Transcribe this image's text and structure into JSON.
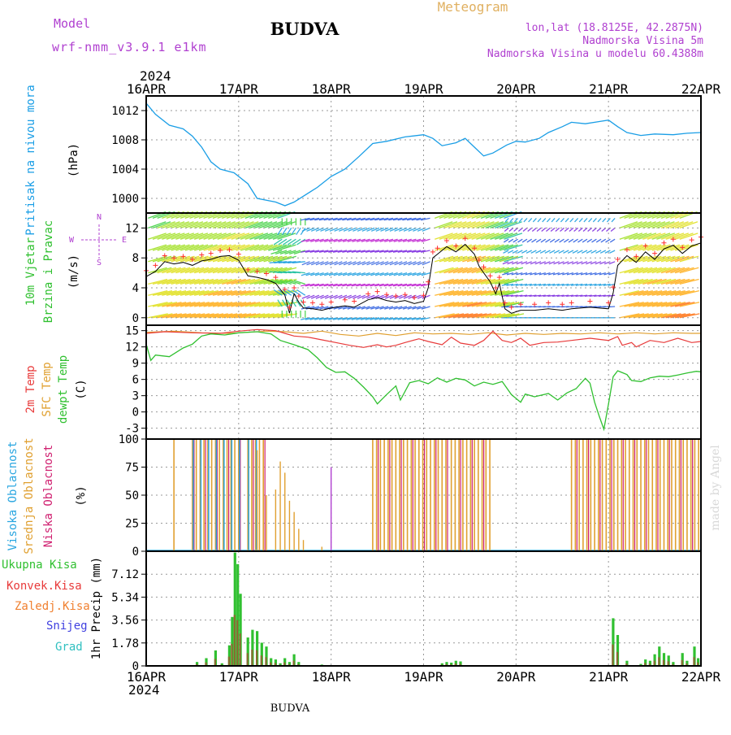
{
  "header": {
    "model_label": "Model",
    "model_name": "wrf-nmm_v3.9.1 e1km",
    "station": "BUDVA",
    "product": "Meteogram",
    "lonlat": "lon,lat (18.8125E, 42.2875N)",
    "elevation": "Nadmorska Visina 5m",
    "model_elevation": "Nadmorska Visina u modelu 60.4388m",
    "footer_station": "BUDVA",
    "credit": "made by Angel"
  },
  "time_axis": {
    "year": "2024",
    "ticks": [
      "16APR",
      "17APR",
      "18APR",
      "19APR",
      "20APR",
      "21APR",
      "22APR"
    ]
  },
  "colors": {
    "pressure": "#1a9ee6",
    "wind_line": "#000000",
    "gust": "#ff3030",
    "temp2m": "#e83a3a",
    "sfc": "#e0a030",
    "dewpt": "#30c030",
    "high_cloud": "#2aa6e0",
    "mid_cloud": "#e0a030",
    "low_cloud": "#d02070",
    "total_precip": "#30c030",
    "conv_precip": "#e83a3a",
    "frz_precip": "#f08030",
    "snow": "#4040e0",
    "hail": "#30c0c0",
    "purple_text": "#b040d0",
    "orange_text": "#e0b060"
  },
  "panels": {
    "pressure": {
      "label": "Pritisak na nivou mora",
      "unit": "(hPa)",
      "ticks": [
        "1012",
        "1008",
        "1004",
        "1000"
      ],
      "tick_values": [
        1012,
        1008,
        1004,
        1000
      ],
      "ylim": [
        998,
        1014
      ]
    },
    "wind": {
      "label1": "10m Vjetar",
      "label2": "Brzina i Pravac",
      "unit": "(m/s)",
      "ticks": [
        "12",
        "8",
        "4",
        "0"
      ],
      "tick_values": [
        12,
        8,
        4,
        0
      ],
      "ylim": [
        -1,
        14
      ],
      "compass": [
        "N",
        "W",
        "E",
        "S"
      ]
    },
    "temperature": {
      "label1": "2m Temp",
      "label2": "SFC Temp",
      "label3": "dewpt Temp",
      "unit": "(C)",
      "ticks": [
        "15",
        "12",
        "9",
        "6",
        "3",
        "0",
        "-3"
      ],
      "tick_values": [
        15,
        12,
        9,
        6,
        3,
        0,
        -3
      ],
      "ylim": [
        -5,
        16
      ]
    },
    "cloud": {
      "label1": "Visoka Oblacnost",
      "label2": "Srednja Oblacnost",
      "label3": "Niska Oblacnost",
      "unit": "(%)",
      "ticks": [
        "100",
        "75",
        "50",
        "25",
        "0"
      ],
      "tick_values": [
        100,
        75,
        50,
        25,
        0
      ],
      "ylim": [
        0,
        100
      ]
    },
    "precip": {
      "legend": [
        "Ukupna Kisa",
        "Konvek.Kisa",
        "Zaledj.Kisa",
        "Snijeg",
        "Grad"
      ],
      "unit": "1hr Precip (mm)",
      "ticks": [
        "7.12",
        "5.34",
        "3.56",
        "1.78",
        "0"
      ],
      "tick_values": [
        7.12,
        5.34,
        3.56,
        1.78,
        0
      ],
      "ylim": [
        0,
        8.9
      ]
    }
  },
  "chart_data": {
    "type": "line",
    "x_unit": "days from 16APR 00 UTC",
    "pressure_hpa": [
      [
        0,
        1013
      ],
      [
        0.1,
        1011.5
      ],
      [
        0.25,
        1010
      ],
      [
        0.4,
        1009.5
      ],
      [
        0.5,
        1008.5
      ],
      [
        0.6,
        1007
      ],
      [
        0.7,
        1005
      ],
      [
        0.8,
        1004
      ],
      [
        0.95,
        1003.5
      ],
      [
        1.1,
        1002
      ],
      [
        1.2,
        1000
      ],
      [
        1.4,
        999.5
      ],
      [
        1.5,
        999
      ],
      [
        1.6,
        999.5
      ],
      [
        1.7,
        1000.3
      ],
      [
        1.85,
        1001.5
      ],
      [
        2.0,
        1003
      ],
      [
        2.15,
        1004
      ],
      [
        2.3,
        1005.7
      ],
      [
        2.45,
        1007.5
      ],
      [
        2.6,
        1007.8
      ],
      [
        2.8,
        1008.4
      ],
      [
        3.0,
        1008.7
      ],
      [
        3.1,
        1008.2
      ],
      [
        3.2,
        1007.2
      ],
      [
        3.35,
        1007.6
      ],
      [
        3.45,
        1008.2
      ],
      [
        3.55,
        1007
      ],
      [
        3.65,
        1005.8
      ],
      [
        3.75,
        1006.2
      ],
      [
        3.9,
        1007.3
      ],
      [
        4.0,
        1007.8
      ],
      [
        4.1,
        1007.7
      ],
      [
        4.25,
        1008.2
      ],
      [
        4.35,
        1009
      ],
      [
        4.5,
        1009.8
      ],
      [
        4.6,
        1010.4
      ],
      [
        4.75,
        1010.2
      ],
      [
        4.9,
        1010.5
      ],
      [
        5.0,
        1010.7
      ],
      [
        5.1,
        1009.8
      ],
      [
        5.2,
        1009
      ],
      [
        5.35,
        1008.6
      ],
      [
        5.5,
        1008.8
      ],
      [
        5.7,
        1008.7
      ],
      [
        5.85,
        1008.9
      ],
      [
        6.0,
        1009
      ]
    ],
    "wind_speed_ms": [
      [
        0,
        5.5
      ],
      [
        0.1,
        6.2
      ],
      [
        0.2,
        7.5
      ],
      [
        0.3,
        7.2
      ],
      [
        0.4,
        7.4
      ],
      [
        0.5,
        7.0
      ],
      [
        0.6,
        7.6
      ],
      [
        0.7,
        7.8
      ],
      [
        0.8,
        8.2
      ],
      [
        0.9,
        8.3
      ],
      [
        1.0,
        7.7
      ],
      [
        1.1,
        5.6
      ],
      [
        1.2,
        5.4
      ],
      [
        1.3,
        5.1
      ],
      [
        1.4,
        4.6
      ],
      [
        1.5,
        3.0
      ],
      [
        1.55,
        0.6
      ],
      [
        1.6,
        3.2
      ],
      [
        1.65,
        2.1
      ],
      [
        1.7,
        1.3
      ],
      [
        1.8,
        1.2
      ],
      [
        1.9,
        1.0
      ],
      [
        2.0,
        1.3
      ],
      [
        2.15,
        1.6
      ],
      [
        2.25,
        1.4
      ],
      [
        2.4,
        2.4
      ],
      [
        2.5,
        2.7
      ],
      [
        2.6,
        2.3
      ],
      [
        2.7,
        2.1
      ],
      [
        2.8,
        2.3
      ],
      [
        2.9,
        1.9
      ],
      [
        3.0,
        2.2
      ],
      [
        3.05,
        4.0
      ],
      [
        3.1,
        8.0
      ],
      [
        3.15,
        8.5
      ],
      [
        3.25,
        9.5
      ],
      [
        3.35,
        8.8
      ],
      [
        3.45,
        9.8
      ],
      [
        3.55,
        8.5
      ],
      [
        3.6,
        6.9
      ],
      [
        3.65,
        6.0
      ],
      [
        3.72,
        4.8
      ],
      [
        3.78,
        3.2
      ],
      [
        3.82,
        4.6
      ],
      [
        3.88,
        1.2
      ],
      [
        3.95,
        0.6
      ],
      [
        4.05,
        1.0
      ],
      [
        4.2,
        1.0
      ],
      [
        4.35,
        1.2
      ],
      [
        4.5,
        1.0
      ],
      [
        4.6,
        1.2
      ],
      [
        4.8,
        1.4
      ],
      [
        5.0,
        1.2
      ],
      [
        5.05,
        3.3
      ],
      [
        5.1,
        7.0
      ],
      [
        5.2,
        8.3
      ],
      [
        5.3,
        7.4
      ],
      [
        5.4,
        8.8
      ],
      [
        5.5,
        7.8
      ],
      [
        5.6,
        9.2
      ],
      [
        5.7,
        9.7
      ],
      [
        5.8,
        8.6
      ],
      [
        5.9,
        9.6
      ],
      [
        6.0,
        10.0
      ]
    ],
    "temp_2m_c": [
      [
        0,
        14.5
      ],
      [
        0.2,
        14.8
      ],
      [
        0.5,
        14.6
      ],
      [
        0.8,
        14.5
      ],
      [
        1.0,
        14.9
      ],
      [
        1.2,
        15.2
      ],
      [
        1.4,
        15.0
      ],
      [
        1.5,
        14.5
      ],
      [
        1.6,
        14.0
      ],
      [
        1.75,
        13.8
      ],
      [
        1.9,
        13.3
      ],
      [
        2.05,
        12.8
      ],
      [
        2.2,
        12.3
      ],
      [
        2.35,
        11.9
      ],
      [
        2.5,
        12.4
      ],
      [
        2.6,
        12.0
      ],
      [
        2.7,
        12.3
      ],
      [
        2.8,
        12.8
      ],
      [
        2.95,
        13.5
      ],
      [
        3.05,
        13.0
      ],
      [
        3.2,
        12.4
      ],
      [
        3.3,
        13.8
      ],
      [
        3.4,
        12.7
      ],
      [
        3.55,
        12.3
      ],
      [
        3.65,
        13.2
      ],
      [
        3.75,
        14.9
      ],
      [
        3.85,
        13.2
      ],
      [
        3.95,
        12.8
      ],
      [
        4.05,
        13.6
      ],
      [
        4.15,
        12.3
      ],
      [
        4.3,
        12.8
      ],
      [
        4.45,
        12.9
      ],
      [
        4.6,
        13.2
      ],
      [
        4.8,
        13.6
      ],
      [
        5.0,
        13.2
      ],
      [
        5.1,
        13.9
      ],
      [
        5.15,
        12.3
      ],
      [
        5.25,
        12.8
      ],
      [
        5.3,
        12.0
      ],
      [
        5.45,
        13.2
      ],
      [
        5.6,
        12.8
      ],
      [
        5.75,
        13.6
      ],
      [
        5.9,
        12.8
      ],
      [
        6.0,
        13.0
      ]
    ],
    "temp_sfc_c": [
      [
        0,
        14.7
      ],
      [
        0.3,
        14.9
      ],
      [
        0.6,
        14.6
      ],
      [
        0.9,
        14.5
      ],
      [
        1.1,
        14.7
      ],
      [
        1.3,
        14.9
      ],
      [
        1.5,
        14.8
      ],
      [
        1.7,
        14.5
      ],
      [
        1.9,
        14.9
      ],
      [
        2.1,
        14.3
      ],
      [
        2.3,
        14.0
      ],
      [
        2.5,
        14.5
      ],
      [
        2.7,
        14.1
      ],
      [
        2.9,
        14.6
      ],
      [
        3.1,
        14.4
      ],
      [
        3.3,
        14.5
      ],
      [
        3.5,
        14.3
      ],
      [
        3.7,
        14.6
      ],
      [
        3.9,
        14.2
      ],
      [
        4.1,
        14.5
      ],
      [
        4.3,
        14.3
      ],
      [
        4.5,
        14.5
      ],
      [
        4.7,
        14.4
      ],
      [
        4.9,
        14.6
      ],
      [
        5.1,
        14.4
      ],
      [
        5.3,
        14.6
      ],
      [
        5.5,
        14.4
      ],
      [
        5.7,
        14.6
      ],
      [
        5.9,
        14.5
      ],
      [
        6.0,
        14.5
      ]
    ],
    "dewpt_c": [
      [
        0,
        12.5
      ],
      [
        0.05,
        9.5
      ],
      [
        0.1,
        10.5
      ],
      [
        0.25,
        10.2
      ],
      [
        0.4,
        11.8
      ],
      [
        0.5,
        12.5
      ],
      [
        0.6,
        14.0
      ],
      [
        0.7,
        14.4
      ],
      [
        0.85,
        14.2
      ],
      [
        1.0,
        14.6
      ],
      [
        1.2,
        14.8
      ],
      [
        1.35,
        14.4
      ],
      [
        1.45,
        13.2
      ],
      [
        1.6,
        12.4
      ],
      [
        1.75,
        11.5
      ],
      [
        1.85,
        10.0
      ],
      [
        1.95,
        8.2
      ],
      [
        2.05,
        7.3
      ],
      [
        2.15,
        7.4
      ],
      [
        2.25,
        6.2
      ],
      [
        2.35,
        4.6
      ],
      [
        2.45,
        2.8
      ],
      [
        2.5,
        1.5
      ],
      [
        2.6,
        3.2
      ],
      [
        2.7,
        4.8
      ],
      [
        2.75,
        2.2
      ],
      [
        2.85,
        5.4
      ],
      [
        2.95,
        5.8
      ],
      [
        3.05,
        5.2
      ],
      [
        3.15,
        6.3
      ],
      [
        3.25,
        5.5
      ],
      [
        3.35,
        6.2
      ],
      [
        3.45,
        5.9
      ],
      [
        3.55,
        4.8
      ],
      [
        3.65,
        5.5
      ],
      [
        3.75,
        5.1
      ],
      [
        3.85,
        5.6
      ],
      [
        3.95,
        3.2
      ],
      [
        4.05,
        1.8
      ],
      [
        4.1,
        3.3
      ],
      [
        4.2,
        2.8
      ],
      [
        4.35,
        3.4
      ],
      [
        4.45,
        2.2
      ],
      [
        4.55,
        3.5
      ],
      [
        4.65,
        4.3
      ],
      [
        4.75,
        6.2
      ],
      [
        4.8,
        5.3
      ],
      [
        4.85,
        1.8
      ],
      [
        4.9,
        -0.8
      ],
      [
        4.95,
        -3.2
      ],
      [
        5.0,
        1.5
      ],
      [
        5.05,
        6.5
      ],
      [
        5.1,
        7.6
      ],
      [
        5.2,
        6.9
      ],
      [
        5.25,
        5.8
      ],
      [
        5.35,
        5.6
      ],
      [
        5.45,
        6.3
      ],
      [
        5.55,
        6.6
      ],
      [
        5.65,
        6.5
      ],
      [
        5.75,
        6.8
      ],
      [
        5.85,
        7.2
      ],
      [
        5.95,
        7.5
      ],
      [
        6.0,
        7.4
      ]
    ],
    "cloud_hours_full_mid_high": [
      [
        0.3,
        0.33
      ],
      [
        0.5,
        1.0
      ],
      [
        1.1,
        1.3
      ],
      [
        2.45,
        3.25
      ],
      [
        3.3,
        3.75
      ],
      [
        4.6,
        6.0
      ]
    ],
    "precip_total_mm": [
      [
        0.55,
        0.3
      ],
      [
        0.65,
        0.6
      ],
      [
        0.75,
        1.2
      ],
      [
        0.82,
        0.2
      ],
      [
        0.9,
        1.6
      ],
      [
        0.93,
        3.8
      ],
      [
        0.96,
        8.8
      ],
      [
        0.99,
        7.9
      ],
      [
        1.02,
        5.6
      ],
      [
        1.1,
        2.2
      ],
      [
        1.15,
        2.8
      ],
      [
        1.2,
        2.7
      ],
      [
        1.25,
        1.8
      ],
      [
        1.3,
        1.5
      ],
      [
        1.35,
        0.6
      ],
      [
        1.4,
        0.5
      ],
      [
        1.45,
        0.2
      ],
      [
        1.5,
        0.6
      ],
      [
        1.55,
        0.3
      ],
      [
        1.6,
        0.9
      ],
      [
        1.65,
        0.3
      ],
      [
        1.9,
        0.1
      ],
      [
        3.2,
        0.2
      ],
      [
        3.25,
        0.3
      ],
      [
        3.3,
        0.25
      ],
      [
        3.35,
        0.4
      ],
      [
        3.4,
        0.35
      ],
      [
        5.05,
        3.7
      ],
      [
        5.1,
        2.4
      ],
      [
        5.2,
        0.4
      ],
      [
        5.35,
        0.15
      ],
      [
        5.4,
        0.5
      ],
      [
        5.45,
        0.4
      ],
      [
        5.5,
        0.9
      ],
      [
        5.55,
        1.5
      ],
      [
        5.6,
        1.0
      ],
      [
        5.65,
        0.8
      ],
      [
        5.7,
        0.3
      ],
      [
        5.8,
        1.0
      ],
      [
        5.85,
        0.4
      ],
      [
        5.93,
        1.5
      ],
      [
        5.97,
        0.6
      ]
    ]
  }
}
